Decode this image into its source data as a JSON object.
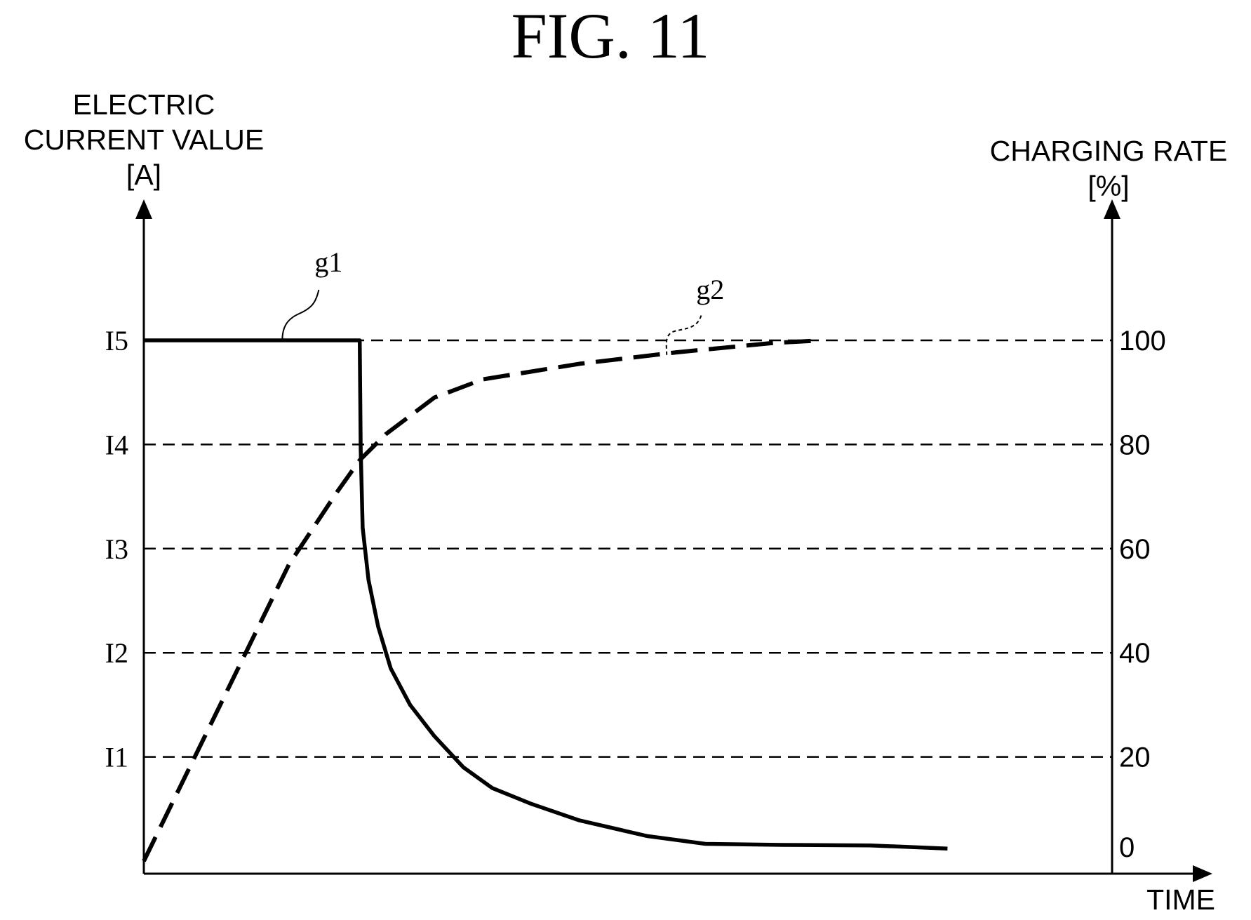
{
  "figure": {
    "title": "FIG. 11"
  },
  "chart_data": {
    "type": "line",
    "title": "FIG. 11",
    "y_left_label": [
      "ELECTRIC",
      "CURRENT VALUE",
      "[A]"
    ],
    "y_right_label": [
      "CHARGING RATE",
      "[%]"
    ],
    "x_label": "TIME",
    "y_left_ticks": [
      "I1",
      "I2",
      "I3",
      "I4",
      "I5"
    ],
    "y_right_ticks": [
      "0",
      "20",
      "40",
      "60",
      "80",
      "100"
    ],
    "y_right_range": [
      0,
      100
    ],
    "x_range": [
      0,
      100
    ],
    "grid": "horizontal dashed at 20, 40, 60, 80, 100",
    "colors": {
      "ink": "#000000",
      "background": "#ffffff"
    },
    "series": [
      {
        "name": "g1",
        "line_style": "solid",
        "axis": "left",
        "points": [
          [
            0,
            100
          ],
          [
            22.3,
            100
          ],
          [
            22.4,
            79
          ],
          [
            22.6,
            64
          ],
          [
            23.2,
            54
          ],
          [
            24.2,
            45
          ],
          [
            25.5,
            37
          ],
          [
            27.5,
            30
          ],
          [
            30,
            24
          ],
          [
            33,
            18
          ],
          [
            36,
            14
          ],
          [
            40,
            11
          ],
          [
            45,
            7.8
          ],
          [
            52,
            4.8
          ],
          [
            58,
            3.3
          ],
          [
            66,
            3.1
          ],
          [
            75,
            3.0
          ],
          [
            83,
            2.4
          ]
        ]
      },
      {
        "name": "g2",
        "line_style": "dashed",
        "axis": "right",
        "points": [
          [
            0,
            0
          ],
          [
            5,
            19
          ],
          [
            10,
            38
          ],
          [
            15,
            57
          ],
          [
            20,
            71
          ],
          [
            22.3,
            77
          ],
          [
            25,
            82
          ],
          [
            30,
            89
          ],
          [
            35,
            92.5
          ],
          [
            45,
            95.5
          ],
          [
            55,
            97.7
          ],
          [
            65,
            99.5
          ],
          [
            70,
            100
          ]
        ]
      }
    ]
  }
}
